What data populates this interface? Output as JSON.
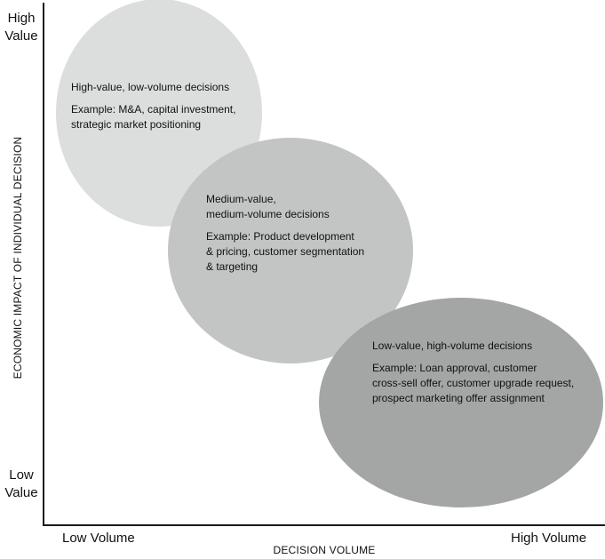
{
  "axes": {
    "y_title": "ECONOMIC IMPACT OF INDIVIDUAL DECISION",
    "x_title": "DECISION VOLUME",
    "y_high": "High\nValue",
    "y_low": "Low\nValue",
    "x_low": "Low Volume",
    "x_high": "High Volume"
  },
  "bubbles": [
    {
      "heading": "High-value, low-volume decisions",
      "example": "Example: M&A, capital investment,\nstrategic market positioning",
      "color": "#dcdedd"
    },
    {
      "heading": "Medium-value,\nmedium-volume decisions",
      "example": "Example: Product development\n& pricing, customer segmentation\n& targeting",
      "color": "#c3c5c4"
    },
    {
      "heading": "Low-value, high-volume decisions",
      "example": "Example: Loan approval, customer\ncross-sell offer, customer upgrade request,\nprospect marketing offer assignment",
      "color": "#a3a6a5"
    }
  ],
  "axis_color": "#1a1a1a"
}
